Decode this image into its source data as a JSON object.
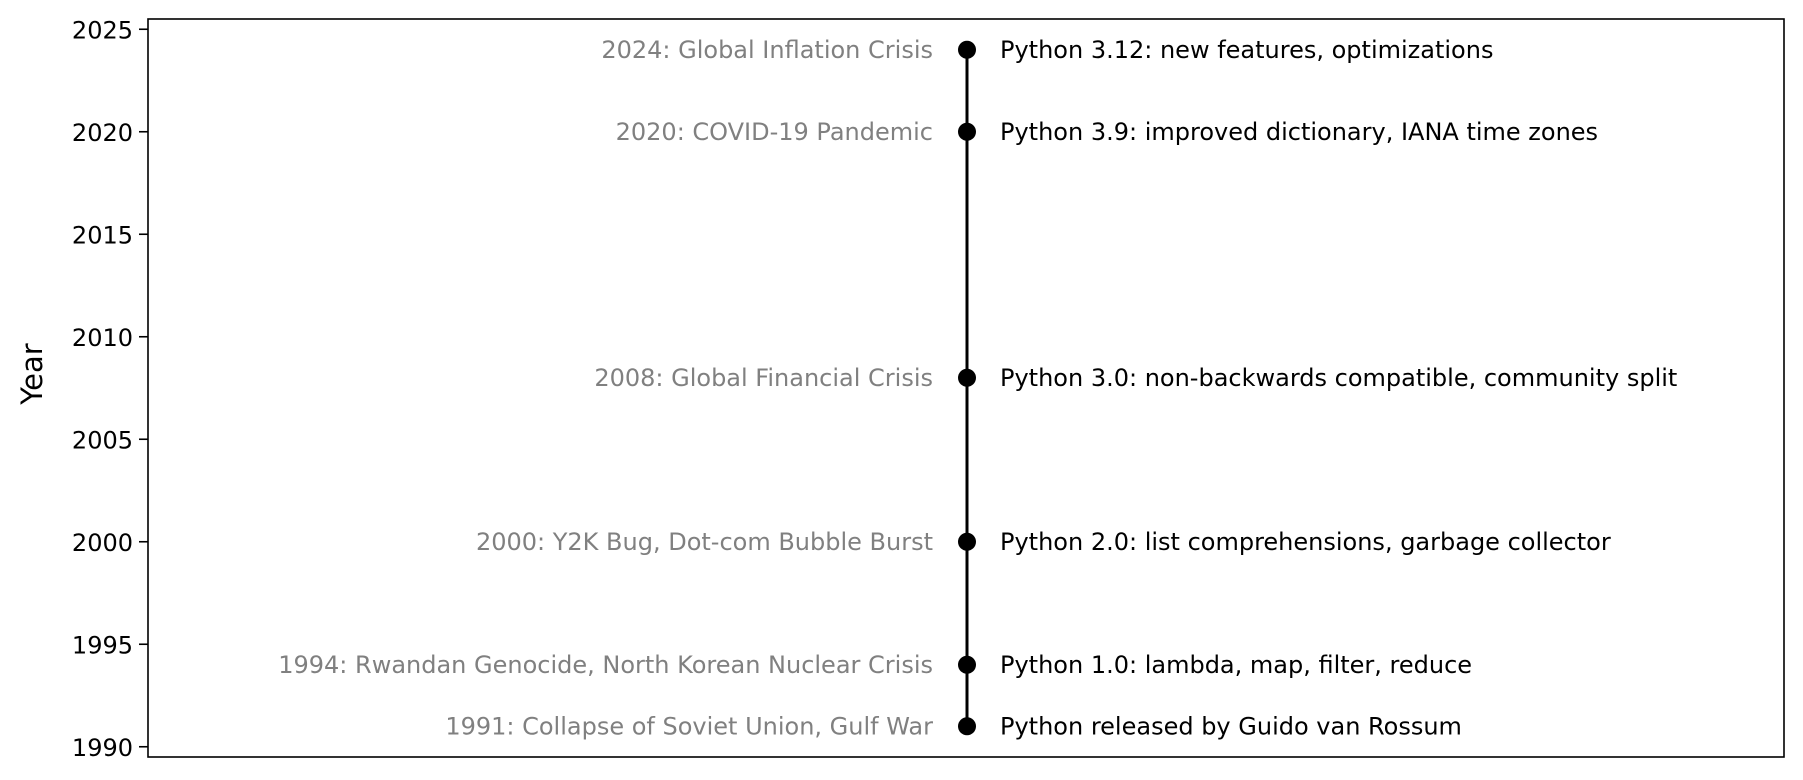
{
  "chart_data": {
    "type": "scatter",
    "ylabel": "Year",
    "ylim": [
      1989.5,
      2025.5
    ],
    "yticks": [
      1990,
      1995,
      2000,
      2005,
      2010,
      2015,
      2020,
      2025
    ],
    "grid": false,
    "timeline_color": "#000000",
    "world_event_color": "#808080",
    "python_event_color": "#000000",
    "events": [
      {
        "year": 1991,
        "world_event": "1991: Collapse of Soviet Union, Gulf War",
        "python_event": "Python released by Guido van Rossum"
      },
      {
        "year": 1994,
        "world_event": "1994: Rwandan Genocide, North Korean Nuclear Crisis",
        "python_event": "Python 1.0: lambda, map, filter, reduce"
      },
      {
        "year": 2000,
        "world_event": "2000: Y2K Bug, Dot-com Bubble Burst",
        "python_event": "Python 2.0: list comprehensions, garbage collector"
      },
      {
        "year": 2008,
        "world_event": "2008: Global Financial Crisis",
        "python_event": "Python 3.0: non-backwards compatible, community split"
      },
      {
        "year": 2020,
        "world_event": "2020: COVID-19 Pandemic",
        "python_event": "Python 3.9: improved dictionary, IANA time zones"
      },
      {
        "year": 2024,
        "world_event": "2024: Global Inflation Crisis",
        "python_event": "Python 3.12: new features, optimizations"
      }
    ]
  }
}
